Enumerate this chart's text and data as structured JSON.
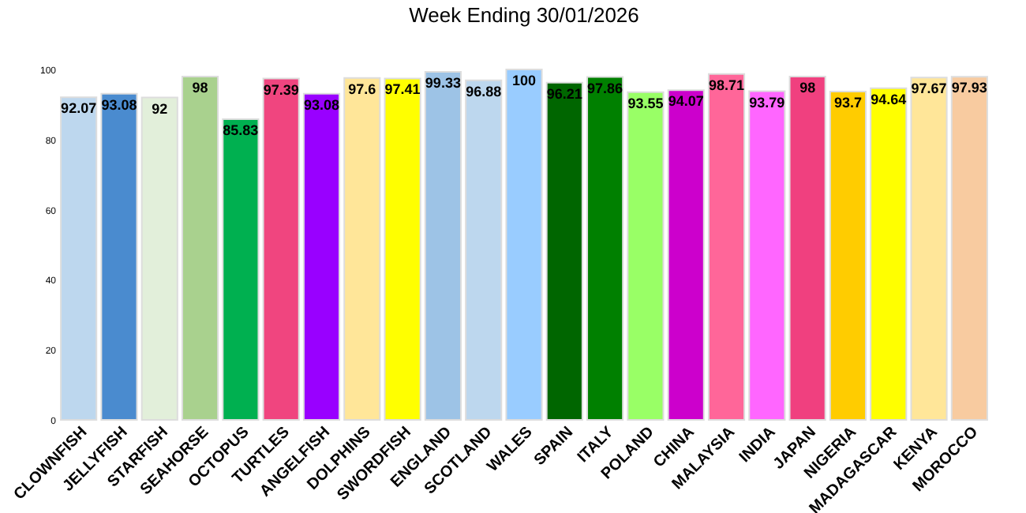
{
  "chart_data": {
    "type": "bar",
    "title": "Week Ending 30/01/2026",
    "categories": [
      "CLOWNFISH",
      "JELLYFISH",
      "STARFISH",
      "SEAHORSE",
      "OCTOPUS",
      "TURTLES",
      "ANGELFISH",
      "DOLPHINS",
      "SWORDFISH",
      "ENGLAND",
      "SCOTLAND",
      "WALES",
      "SPAIN",
      "ITALY",
      "POLAND",
      "CHINA",
      "MALAYSIA",
      "INDIA",
      "JAPAN",
      "NIGERIA",
      "MADAGASCAR",
      "KENYA",
      "MOROCCO"
    ],
    "values": [
      92.07,
      93.08,
      92,
      98,
      85.83,
      97.39,
      93.08,
      97.6,
      97.41,
      99.33,
      96.88,
      100,
      96.21,
      97.86,
      93.55,
      94.07,
      98.71,
      93.79,
      98,
      93.7,
      94.64,
      97.67,
      97.93
    ],
    "colors": [
      "#bdd7ee",
      "#4a8bcf",
      "#e2efda",
      "#a9d18e",
      "#00b050",
      "#f0457f",
      "#9900ff",
      "#ffe699",
      "#ffff00",
      "#9dc3e6",
      "#bdd7ee",
      "#99ccff",
      "#006600",
      "#008000",
      "#99ff66",
      "#cc00cc",
      "#ff6699",
      "#ff66ff",
      "#f0407f",
      "#ffcc00",
      "#ffff00",
      "#ffe699",
      "#f8cba0"
    ],
    "ylim": [
      0,
      100
    ],
    "yticks": [
      0,
      20,
      40,
      60,
      80,
      100
    ],
    "grid": false,
    "data_labels": true
  }
}
